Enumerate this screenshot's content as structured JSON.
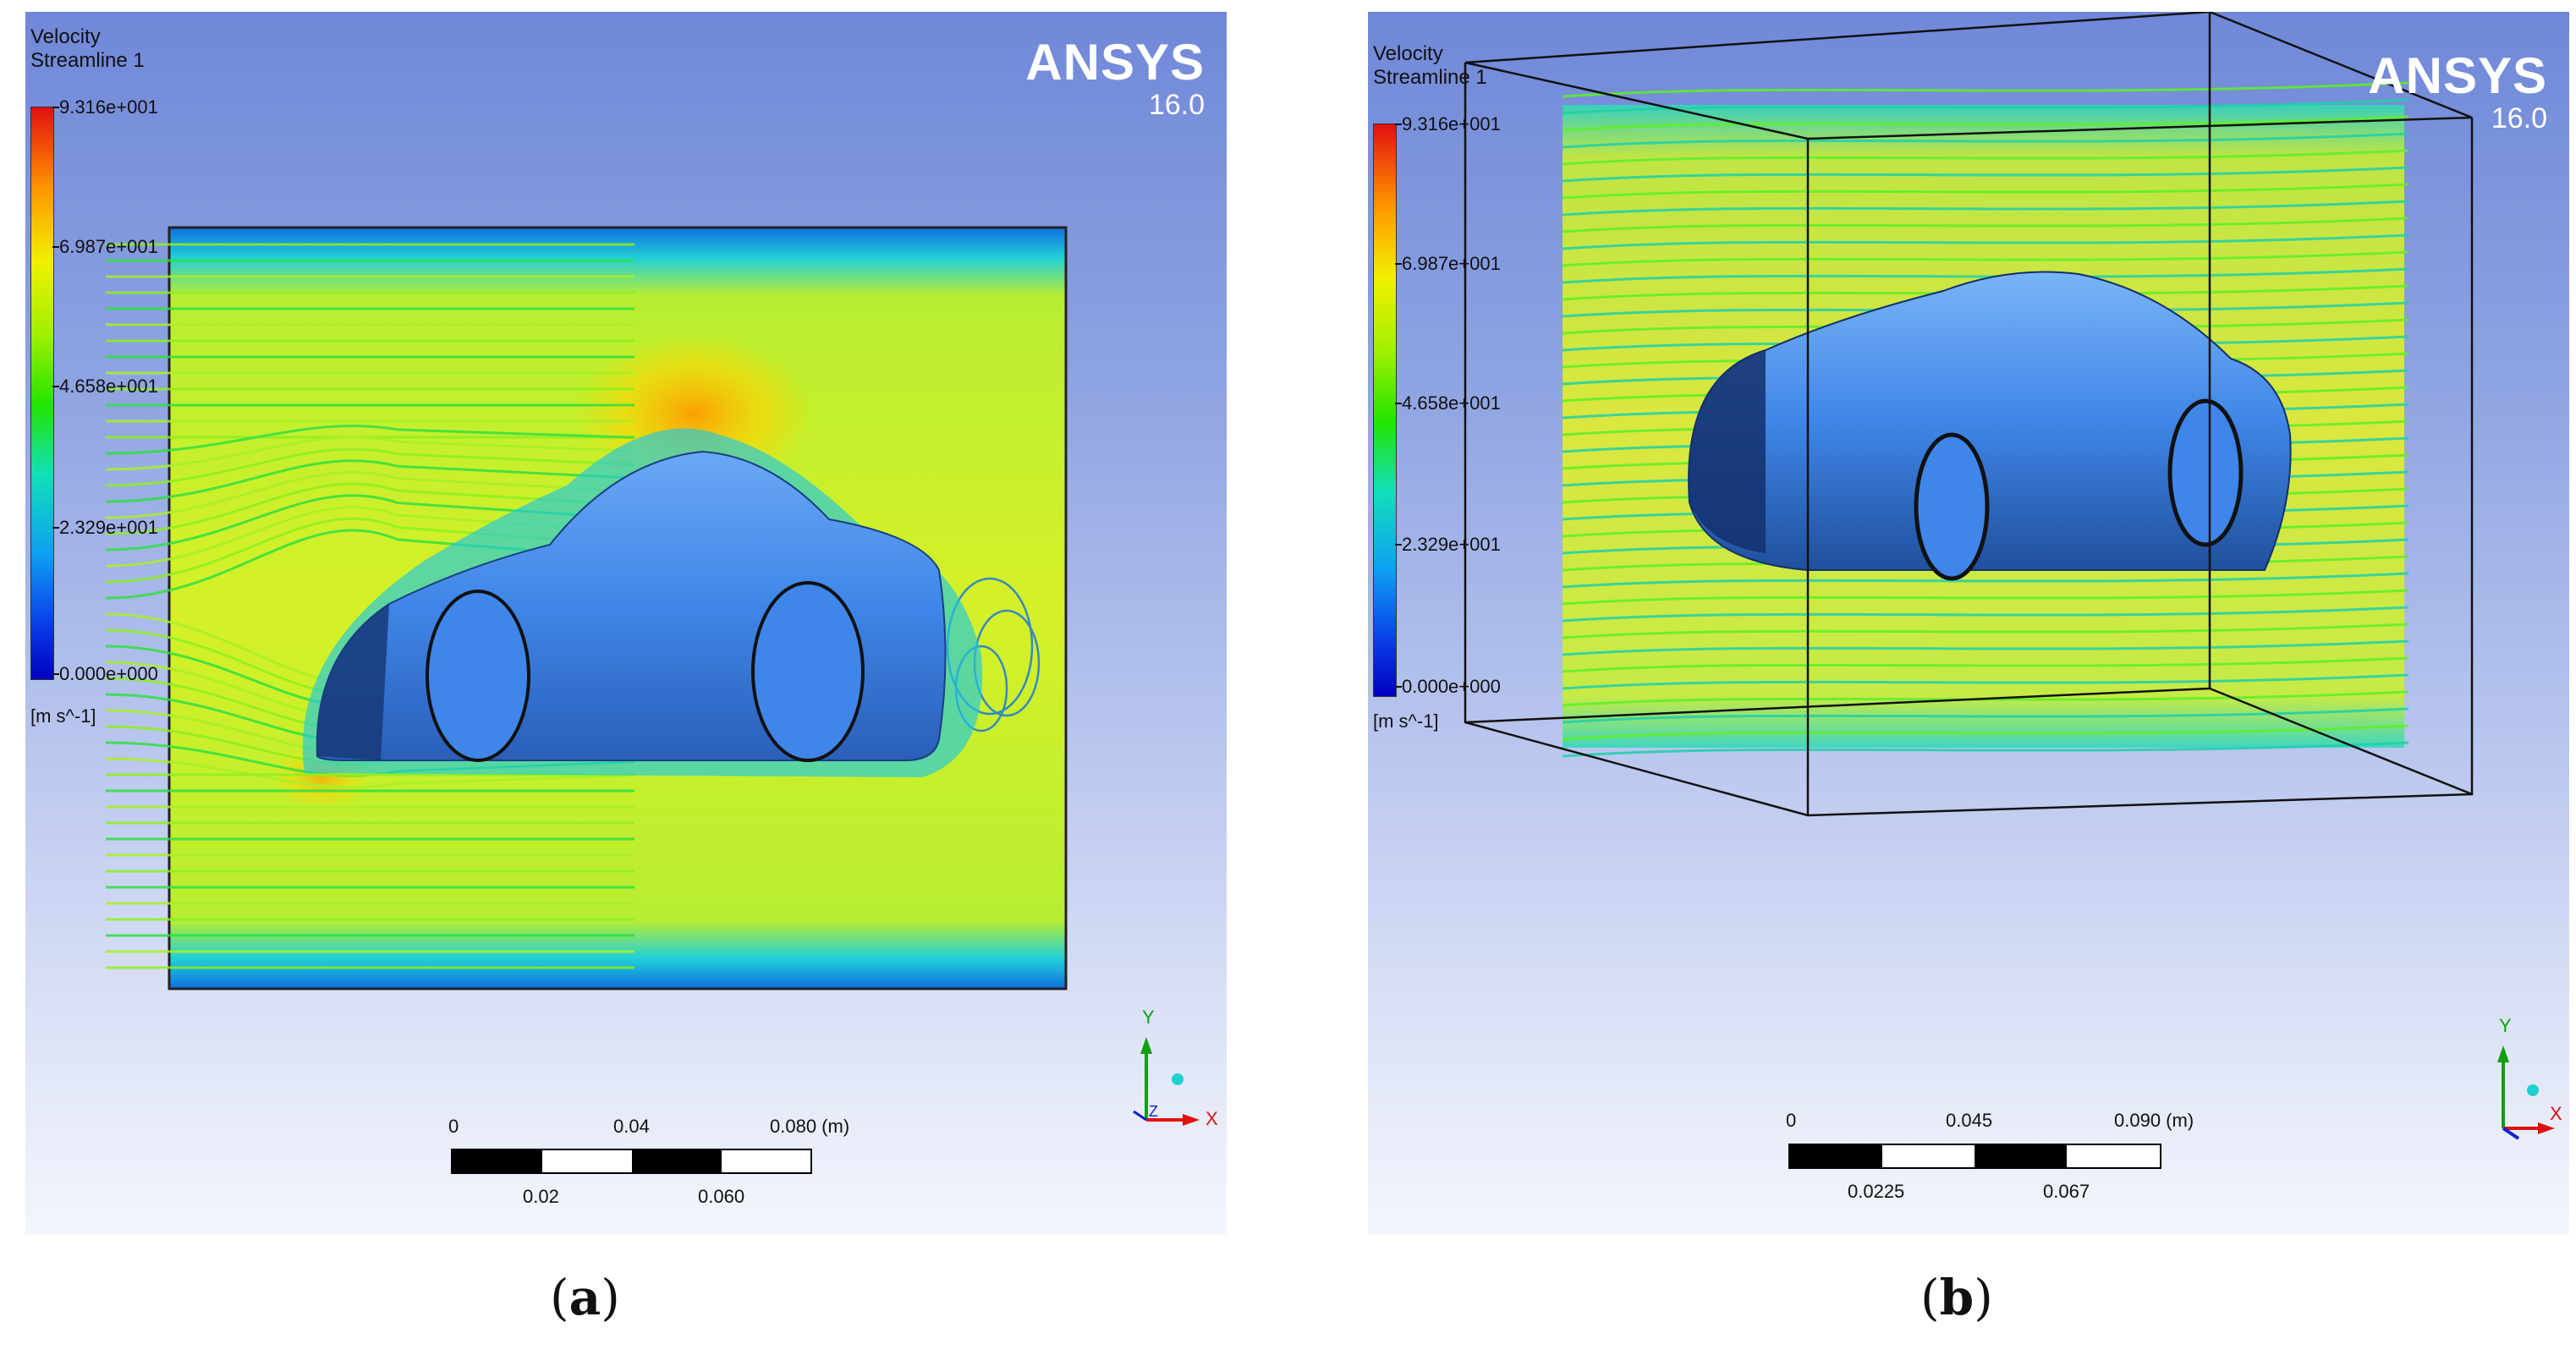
{
  "panels": [
    {
      "id": "a",
      "legend": {
        "title": "Velocity",
        "subtitle": "Streamline 1",
        "ticks": [
          "9.316e+001",
          "6.987e+001",
          "4.658e+001",
          "2.329e+001",
          "0.000e+000"
        ],
        "unit": "[m s^-1]"
      },
      "brand": {
        "name": "ANSYS",
        "version": "16.0"
      },
      "scale": {
        "top_labels": [
          "0",
          "0.04",
          "0.080 (m)"
        ],
        "bottom_labels": [
          "0.02",
          "0.060"
        ]
      },
      "axes": {
        "y": "Y",
        "x": "X",
        "z": "Z"
      },
      "caption": "a"
    },
    {
      "id": "b",
      "legend": {
        "title": "Velocity",
        "subtitle": "Streamline 1",
        "ticks": [
          "9.316e+001",
          "6.987e+001",
          "4.658e+001",
          "2.329e+001",
          "0.000e+000"
        ],
        "unit": "[m s^-1]"
      },
      "brand": {
        "name": "ANSYS",
        "version": "16.0"
      },
      "scale": {
        "top_labels": [
          "0",
          "0.045",
          "0.090 (m)"
        ],
        "bottom_labels": [
          "0.0225",
          "0.067"
        ]
      },
      "axes": {
        "y": "Y",
        "x": "X"
      },
      "caption": "b"
    }
  ],
  "colors": {
    "background_top": "#7088d8",
    "background_bottom": "#f4f6fc",
    "car_body": "#3f86e8",
    "flow_field": "#d8f02a",
    "velocity_max": "#e11010",
    "velocity_min": "#0000c0"
  }
}
